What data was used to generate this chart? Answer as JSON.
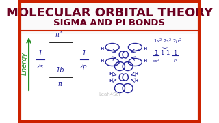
{
  "title_line1": "MOLECULAR ORBITAL THEORY",
  "title_line2": "SIGMA AND PI BONDS",
  "title_color": "#6B0020",
  "title_fontsize": 13,
  "subtitle_fontsize": 9.5,
  "bg_color": "#FFFFFF",
  "border_color": "#CC2200",
  "energy_label": "Energy",
  "energy_color": "#228B22",
  "mo_color": "#222299",
  "watermark": "Leah4Sci",
  "watermark_color": "#AAAAAA",
  "pi_star_label": "π*",
  "pi_bond_label2": "π"
}
